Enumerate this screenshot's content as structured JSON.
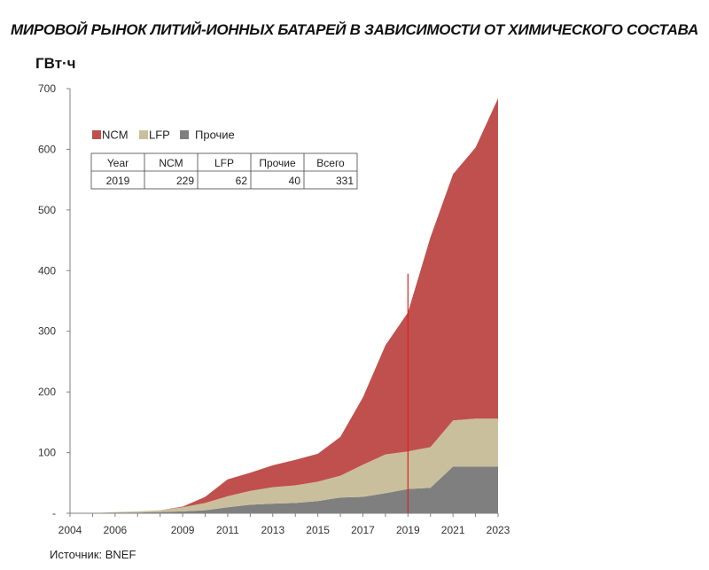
{
  "page": {
    "title": "МИРОВОЙ РЫНОК ЛИТИЙ-ИОННЫХ БАТАРЕЙ В ЗАВИСИМОСТИ ОТ ХИМИЧЕСКОГО СОСТАВА",
    "unit": "ГВт·ч",
    "source": "Источник: BNEF"
  },
  "chart_data": {
    "type": "area",
    "stacked": true,
    "ylabel": "ГВт·ч",
    "ylim": [
      0,
      700
    ],
    "xlim": [
      2004,
      2023
    ],
    "y_ticks": [
      {
        "value": 0,
        "label": "-"
      },
      {
        "value": 100,
        "label": "100"
      },
      {
        "value": 200,
        "label": "200"
      },
      {
        "value": 300,
        "label": "300"
      },
      {
        "value": 400,
        "label": "400"
      },
      {
        "value": 500,
        "label": "500"
      },
      {
        "value": 600,
        "label": "600"
      },
      {
        "value": 700,
        "label": "700"
      }
    ],
    "x_ticks": [
      "2004",
      "2006",
      "2009",
      "2011",
      "2013",
      "2015",
      "2017",
      "2019",
      "2021",
      "2023"
    ],
    "x": [
      2004,
      2005,
      2006,
      2007,
      2008,
      2009,
      2010,
      2011,
      2012,
      2013,
      2014,
      2015,
      2016,
      2017,
      2018,
      2019,
      2020,
      2021,
      2022,
      2023
    ],
    "series": [
      {
        "name": "Прочие",
        "color": "#7f7f7f",
        "values": [
          0,
          0,
          1,
          1,
          2,
          3,
          5,
          10,
          14,
          16,
          17,
          20,
          26,
          27,
          33,
          40,
          42,
          77,
          77,
          77
        ]
      },
      {
        "name": "LFP",
        "color": "#c9bf9d",
        "values": [
          0,
          0,
          1,
          2,
          3,
          7,
          12,
          18,
          23,
          27,
          29,
          32,
          36,
          53,
          64,
          62,
          67,
          76,
          79,
          79
        ]
      },
      {
        "name": "NCM",
        "color": "#c0504d",
        "values": [
          0,
          0,
          0,
          0,
          0,
          1,
          10,
          28,
          30,
          36,
          42,
          46,
          64,
          111,
          180,
          229,
          346,
          406,
          447,
          528
        ]
      }
    ],
    "marker": {
      "x": 2019,
      "y": 395,
      "color": "#e02020"
    },
    "legend": {
      "position": "top-left",
      "items": [
        "NCM",
        "LFP",
        "Прочие"
      ]
    },
    "table": {
      "headers": [
        "Year",
        "NCM",
        "LFP",
        "Прочие",
        "Всего"
      ],
      "rows": [
        [
          "2019",
          "229",
          "62",
          "40",
          "331"
        ]
      ]
    },
    "grid": false
  }
}
